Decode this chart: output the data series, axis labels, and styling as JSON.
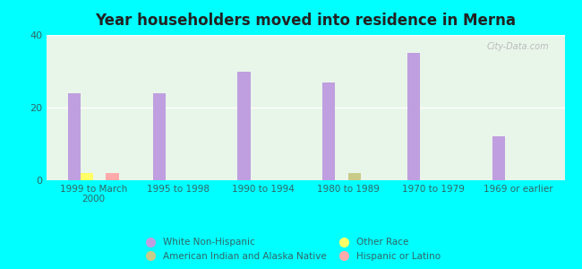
{
  "title": "Year householders moved into residence in Merna",
  "background_color": "#00FFFF",
  "categories": [
    "1999 to March\n2000",
    "1995 to 1998",
    "1990 to 1994",
    "1980 to 1989",
    "1970 to 1979",
    "1969 or earlier"
  ],
  "series": {
    "White Non-Hispanic": {
      "color": "#bf9fdf",
      "values": [
        24,
        24,
        30,
        27,
        35,
        12
      ]
    },
    "Other Race": {
      "color": "#ffff66",
      "values": [
        2,
        0,
        0,
        0,
        0,
        0
      ]
    },
    "American Indian and Alaska Native": {
      "color": "#c8cc88",
      "values": [
        0,
        0,
        0,
        2,
        0,
        0
      ]
    },
    "Hispanic or Latino": {
      "color": "#ffaaaa",
      "values": [
        2,
        0,
        0,
        0,
        0,
        0
      ]
    }
  },
  "ylim": [
    0,
    40
  ],
  "yticks": [
    0,
    20,
    40
  ],
  "bar_width": 0.15,
  "plot_bg": "#e8f5e9",
  "legend_left": [
    {
      "label": "White Non-Hispanic",
      "color": "#bf9fdf"
    },
    {
      "label": "Other Race",
      "color": "#ffff66"
    }
  ],
  "legend_right": [
    {
      "label": "American Indian and Alaska Native",
      "color": "#c8cc88"
    },
    {
      "label": "Hispanic or Latino",
      "color": "#ffaaaa"
    }
  ],
  "watermark": "City-Data.com",
  "text_color": "#336666"
}
